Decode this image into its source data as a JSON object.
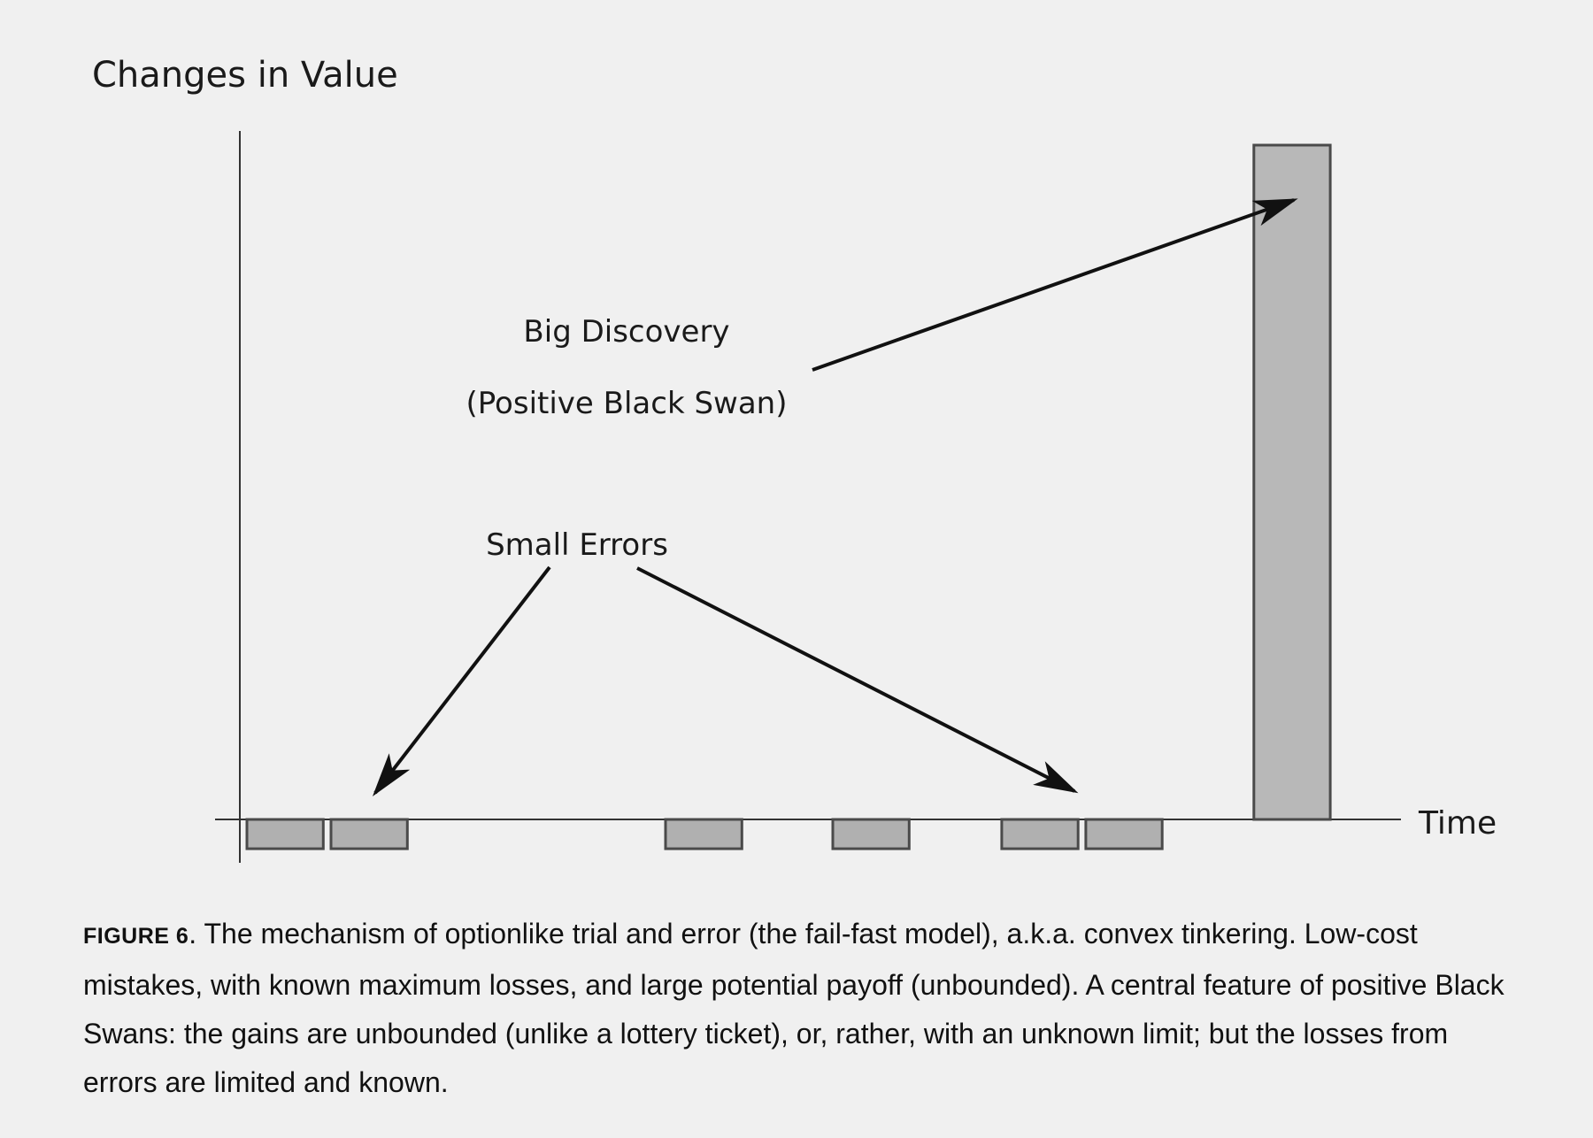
{
  "chart_data": {
    "type": "bar",
    "title": "",
    "ylabel": "Changes in Value",
    "xlabel": "Time",
    "x_range": [
      0,
      1330
    ],
    "y_range": [
      -1,
      23
    ],
    "bar_width": 90,
    "bars": [
      {
        "x": 0,
        "value": -1
      },
      {
        "x": 99,
        "value": -1
      },
      {
        "x": 493,
        "value": -1
      },
      {
        "x": 690,
        "value": -1
      },
      {
        "x": 889,
        "value": -1
      },
      {
        "x": 988,
        "value": -1
      },
      {
        "x": 1186,
        "value": 23
      }
    ],
    "annotations": {
      "big_discovery": {
        "line1": "Big Discovery",
        "line2": "(Positive Black Swan)"
      },
      "small_errors": "Small Errors"
    }
  },
  "caption": {
    "label": "FIGURE 6",
    "text": ". The mechanism of optionlike trial and error (the fail-fast model), a.k.a. convex tinkering. Low-cost mistakes, with known maximum losses, and large potential payoff (unbounded). A central feature of positive Black Swans: the gains are unbounded (unlike a lottery ticket), or, rather, with an unknown limit; but the losses from errors are limited and known."
  },
  "colors": {
    "background": "#f0f0f0",
    "small_bar_fill": "#b0b0b0",
    "big_bar_fill": "#b8b8b8",
    "bar_stroke": "#4a4a4a",
    "axis": "#333333",
    "arrow": "#111111"
  }
}
